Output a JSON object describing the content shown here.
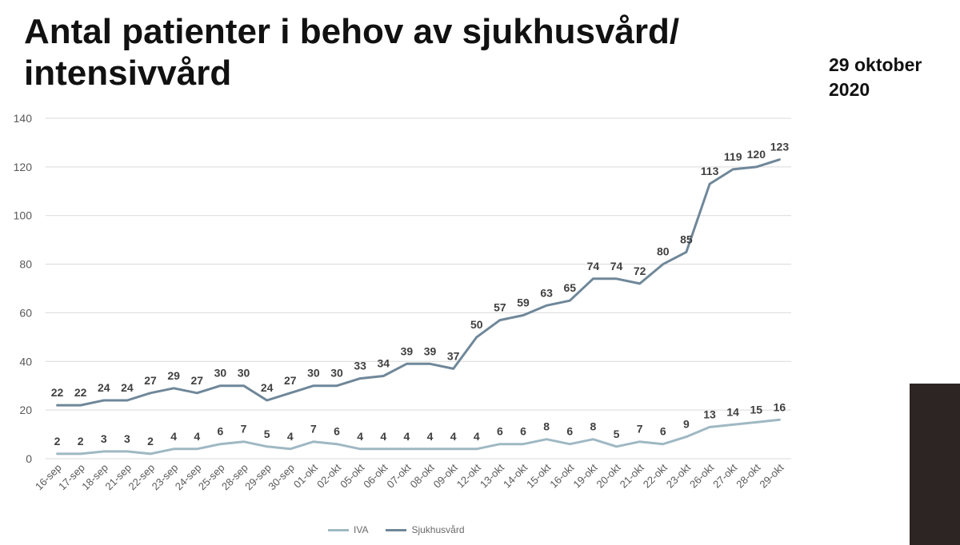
{
  "title": "Antal patienter i behov av sjukhusvård/ intensivvård",
  "date_label": "29 oktober 2020",
  "colors": {
    "iva": "#9fb8c3",
    "sjukhusvard": "#6f8799",
    "grid": "#d9d9d9",
    "label": "#404040",
    "axis_text": "#595959"
  },
  "legend": {
    "iva": "IVA",
    "sjukhusvard": "Sjukhusvård"
  },
  "chart_data": {
    "type": "line",
    "title": "Antal patienter i behov av sjukhusvård/ intensivvård",
    "xlabel": "",
    "ylabel": "",
    "ylim": [
      0,
      140
    ],
    "yticks": [
      0,
      20,
      40,
      60,
      80,
      100,
      120,
      140
    ],
    "grid": true,
    "legend_position": "bottom",
    "categories": [
      "16-sep",
      "17-sep",
      "18-sep",
      "21-sep",
      "22-sep",
      "23-sep",
      "24-sep",
      "25-sep",
      "28-sep",
      "29-sep",
      "30-sep",
      "01-okt",
      "02-okt",
      "05-okt",
      "06-okt",
      "07-okt",
      "08-okt",
      "09-okt",
      "12-okt",
      "13-okt",
      "14-okt",
      "15-okt",
      "16-okt",
      "19-okt",
      "20-okt",
      "21-okt",
      "22-okt",
      "23-okt",
      "26-okt",
      "27-okt",
      "28-okt",
      "29-okt"
    ],
    "series": [
      {
        "name": "IVA",
        "values": [
          2,
          2,
          3,
          3,
          2,
          4,
          4,
          6,
          7,
          5,
          4,
          7,
          6,
          4,
          4,
          4,
          4,
          4,
          4,
          6,
          6,
          8,
          6,
          8,
          5,
          7,
          6,
          9,
          13,
          14,
          15,
          16
        ]
      },
      {
        "name": "Sjukhusvård",
        "values": [
          22,
          22,
          24,
          24,
          27,
          29,
          27,
          30,
          30,
          24,
          27,
          30,
          30,
          33,
          34,
          39,
          39,
          37,
          50,
          57,
          59,
          63,
          65,
          74,
          74,
          72,
          80,
          85,
          113,
          119,
          120,
          123
        ]
      }
    ]
  }
}
